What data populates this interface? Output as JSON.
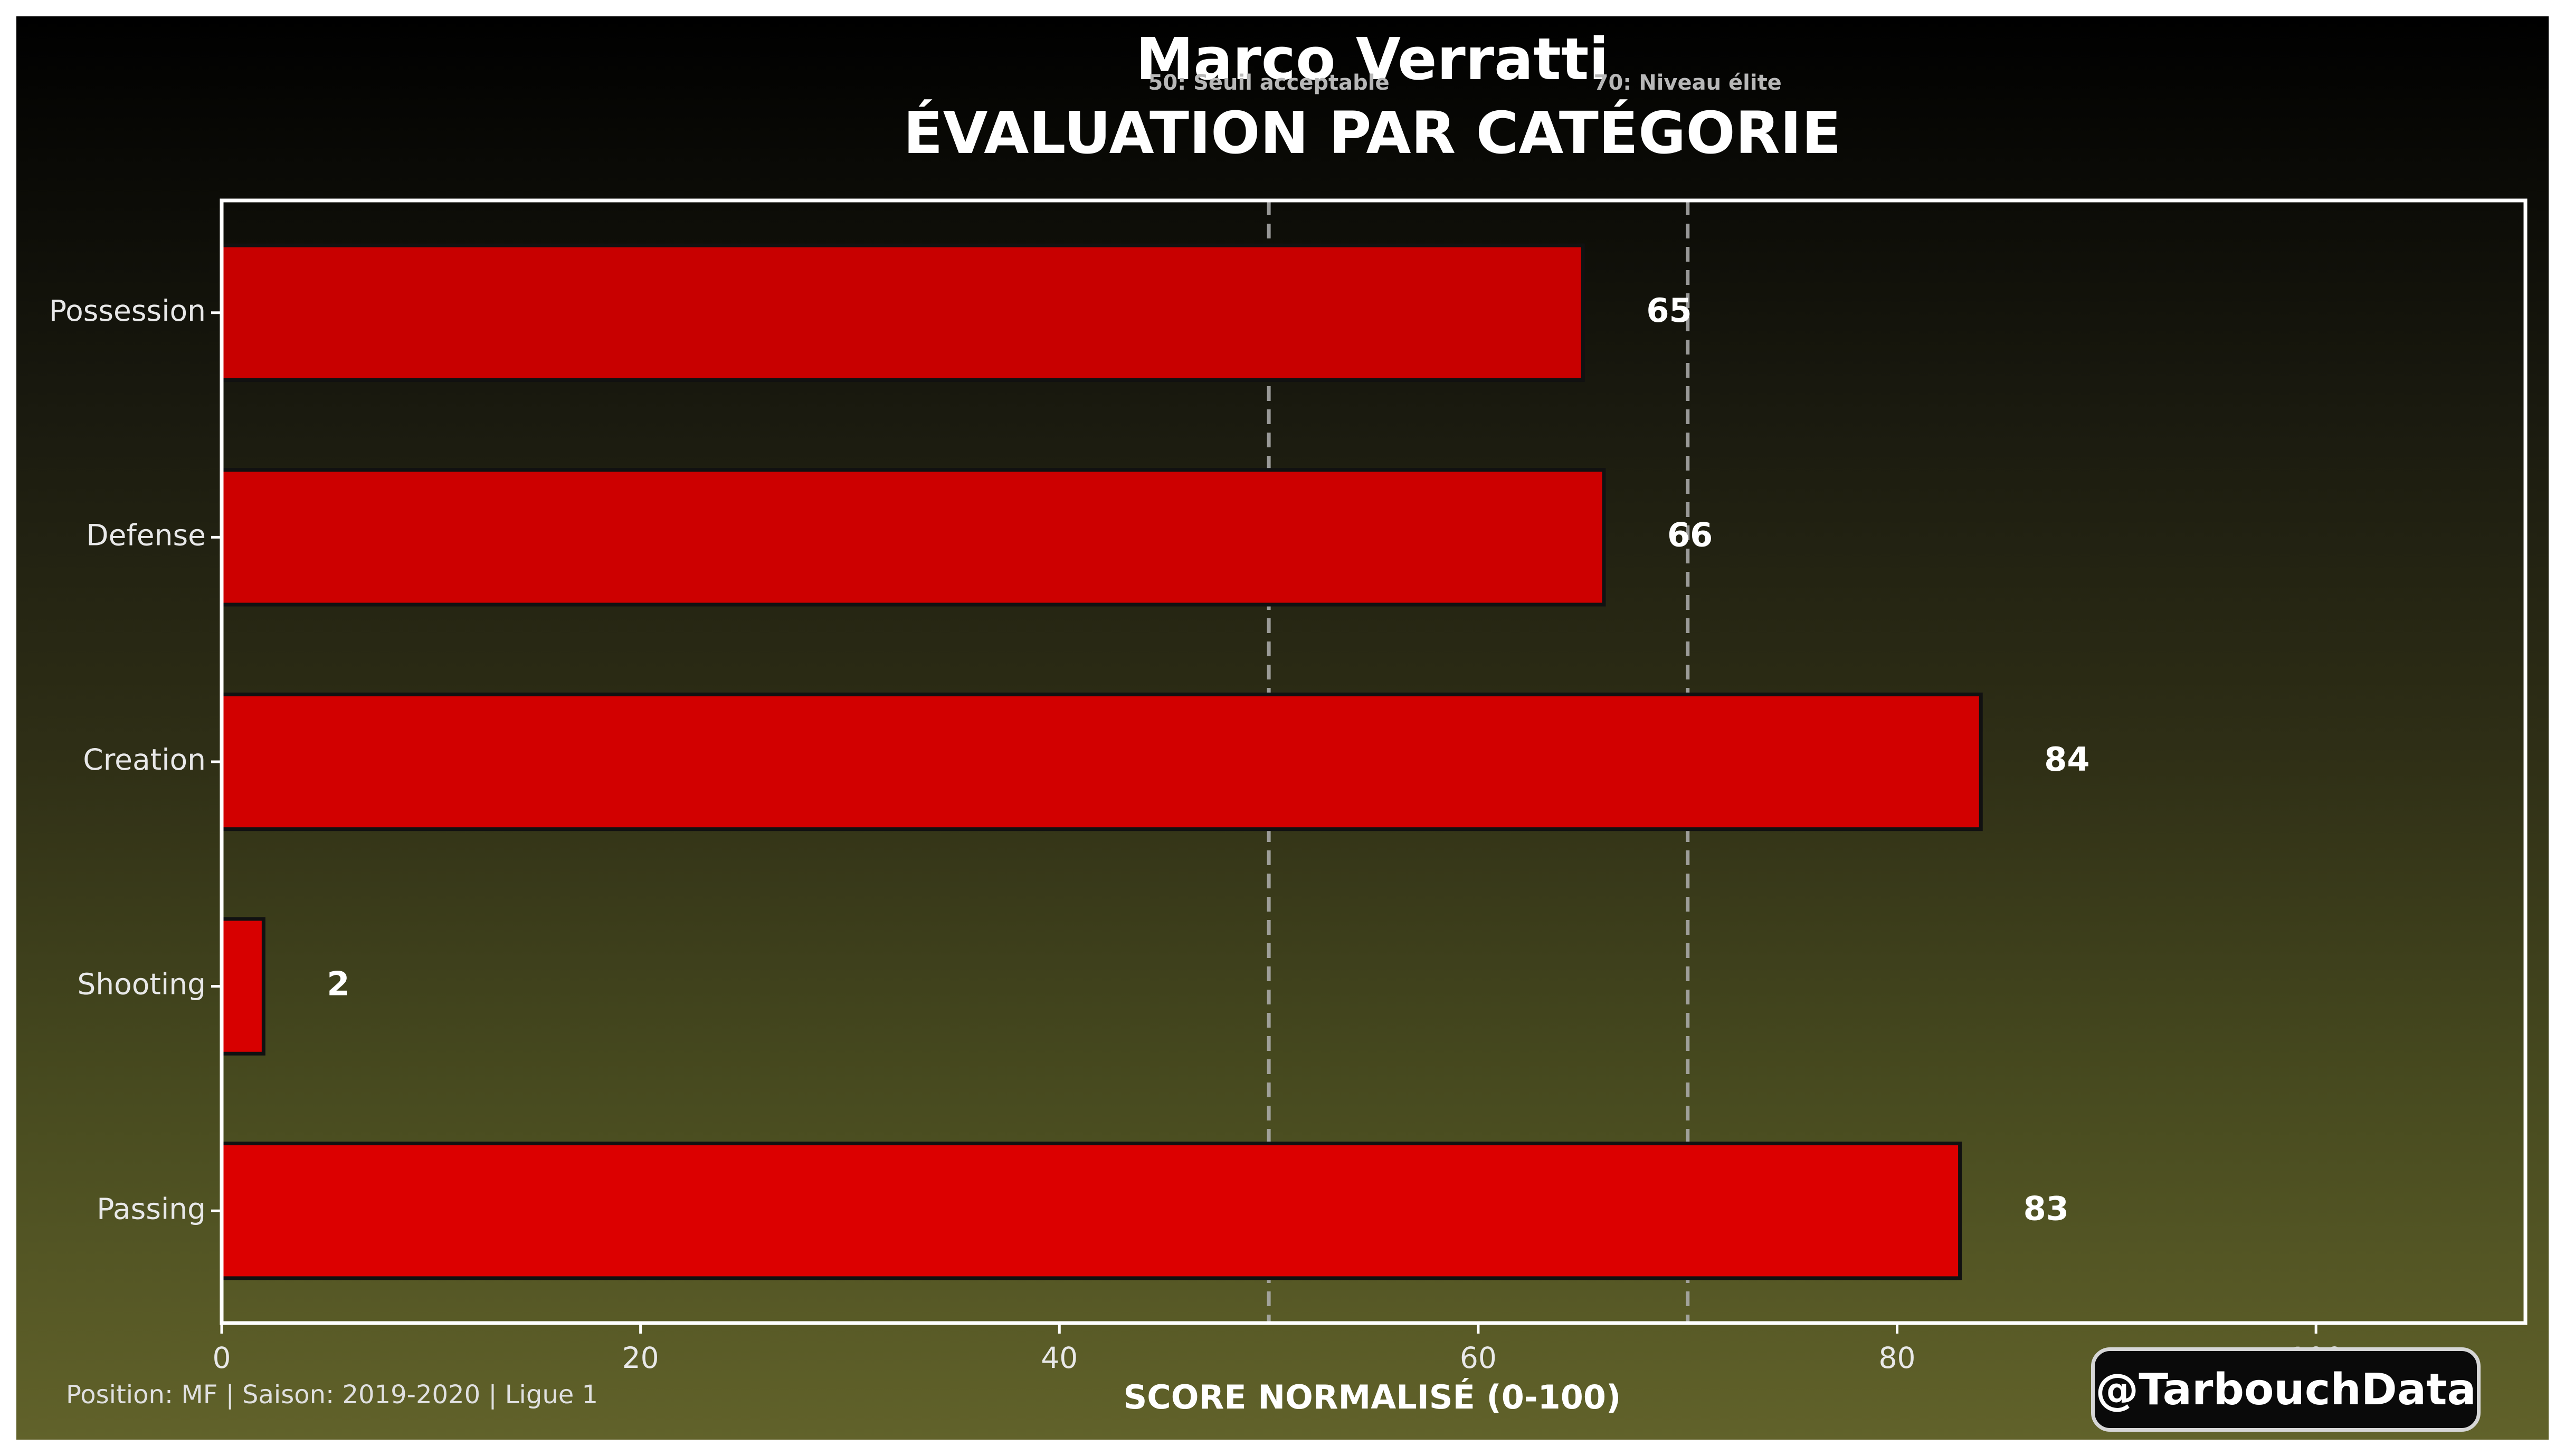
{
  "title": "Marco Verratti",
  "subtitle": "ÉVALUATION PAR CATÉGORIE",
  "footer": "Position: MF | Saison: 2019-2020 | Ligue 1",
  "watermark": "@TarbouchData",
  "colors": {
    "bar": "#d40000",
    "bar_edge": "#111111",
    "threshold": "#b0b0b0",
    "axis": "#ffffff"
  },
  "chart_data": {
    "type": "bar",
    "orientation": "horizontal",
    "title": "Marco Verratti",
    "subtitle": "ÉVALUATION PAR CATÉGORIE",
    "xlabel": "SCORE NORMALISÉ (0-100)",
    "ylabel": "",
    "xlim": [
      0,
      110
    ],
    "x_ticks": [
      0,
      20,
      40,
      60,
      80,
      100
    ],
    "categories": [
      "Possession",
      "Defense",
      "Creation",
      "Shooting",
      "Passing"
    ],
    "values": [
      65,
      66,
      84,
      2,
      83
    ],
    "value_labels": [
      "65",
      "66",
      "84",
      "2",
      "83"
    ],
    "thresholds": [
      {
        "value": 50,
        "label": "50: Seuil acceptable"
      },
      {
        "value": 70,
        "label": "70: Niveau élite"
      }
    ],
    "grid": false,
    "legend": "none"
  }
}
